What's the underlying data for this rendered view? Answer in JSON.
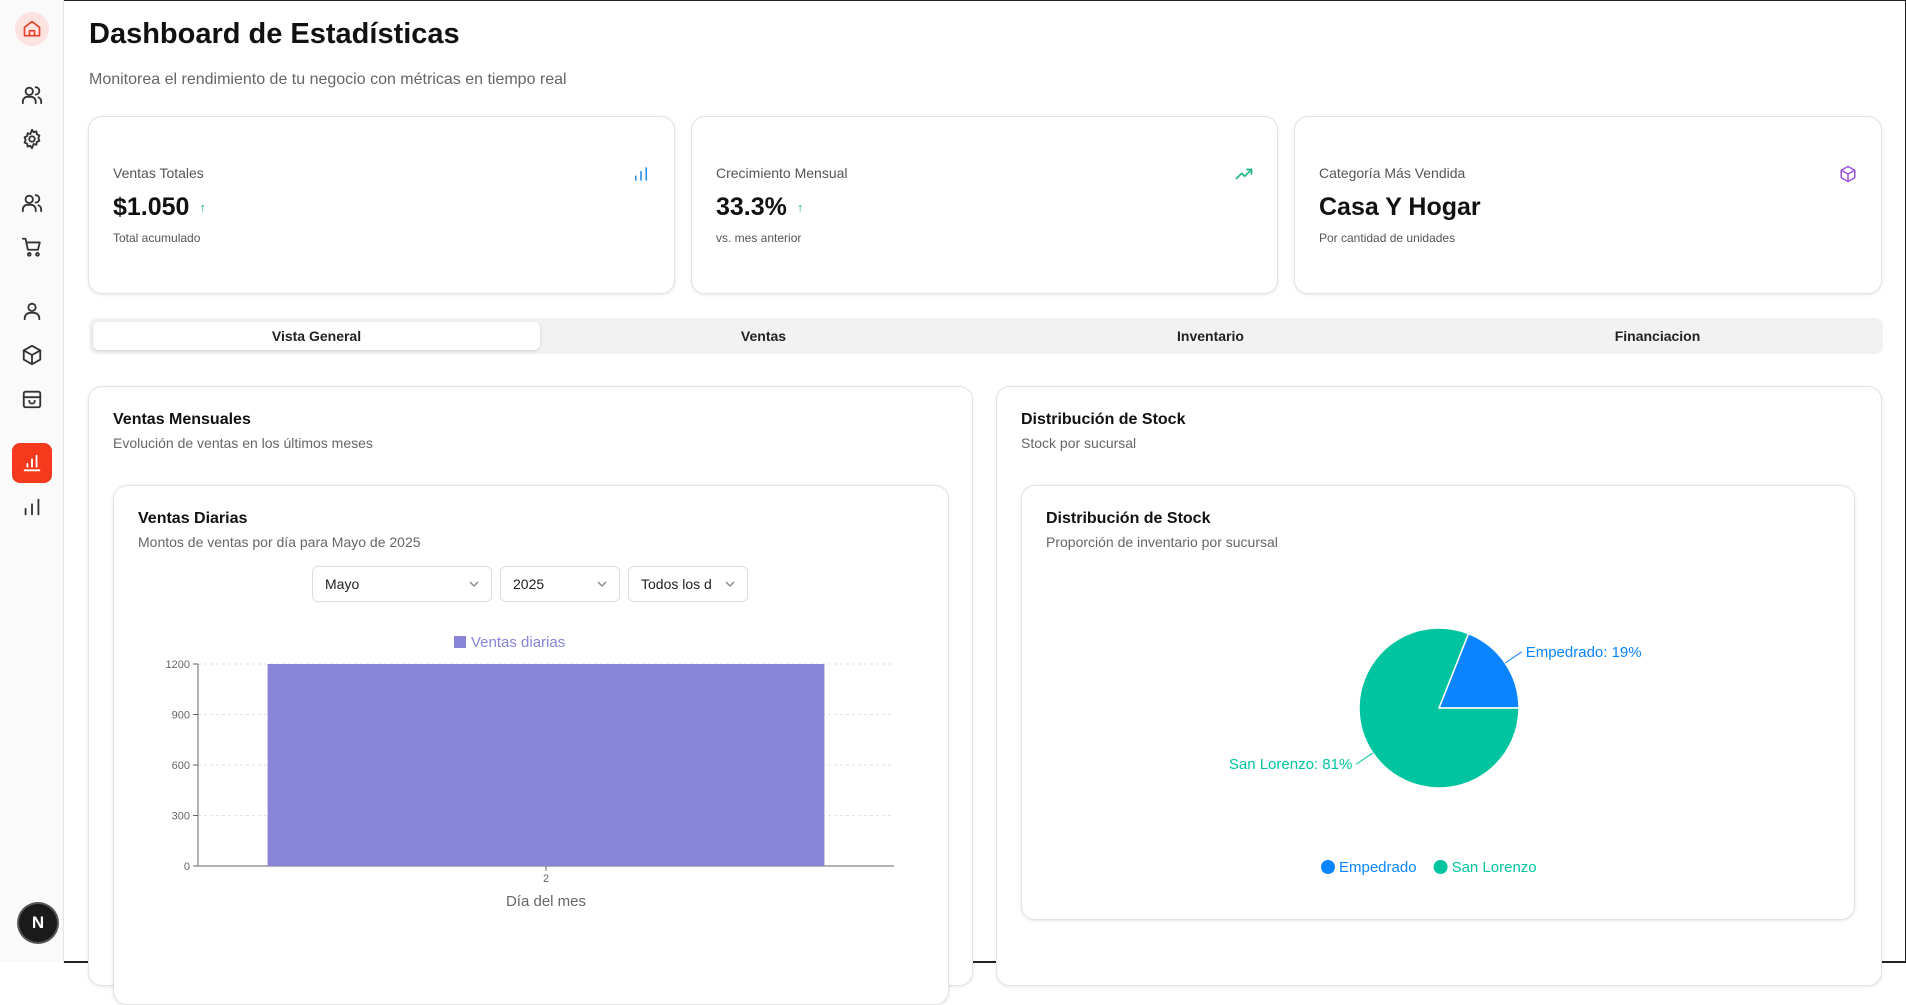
{
  "page": {
    "title": "Dashboard de Estadísticas",
    "subtitle": "Monitorea el rendimiento de tu negocio con métricas en tiempo real"
  },
  "sidebar": {
    "items": [
      {
        "icon": "home-icon"
      },
      {
        "icon": "users-icon"
      },
      {
        "icon": "settings-icon"
      },
      {
        "icon": "users-icon"
      },
      {
        "icon": "cart-icon"
      },
      {
        "icon": "user-icon"
      },
      {
        "icon": "box-icon"
      },
      {
        "icon": "store-icon"
      },
      {
        "icon": "bar-chart-icon",
        "active": true
      },
      {
        "icon": "bar-chart-icon"
      }
    ],
    "avatar_letter": "N"
  },
  "stats": [
    {
      "label": "Ventas Totales",
      "value": "$1.050",
      "note": "Total acumulado",
      "icon": "bar-chart-icon",
      "icon_color": "#2f8fe6",
      "trend": "up"
    },
    {
      "label": "Crecimiento Mensual",
      "value": "33.3%",
      "note": "vs. mes anterior",
      "icon": "trending-up-icon",
      "icon_color": "#1fb981",
      "trend": "up"
    },
    {
      "label": "Categoría Más Vendida",
      "value": "Casa Y Hogar",
      "note": "Por cantidad de unidades",
      "icon": "box-icon",
      "icon_color": "#9b51e0"
    }
  ],
  "trend_glyph": "↑",
  "tabs": [
    {
      "label": "Vista General",
      "active": true
    },
    {
      "label": "Ventas"
    },
    {
      "label": "Inventario"
    },
    {
      "label": "Financiacion"
    }
  ],
  "sales_section": {
    "title": "Ventas Mensuales",
    "subtitle": "Evolución de ventas en los últimos meses",
    "daily": {
      "title": "Ventas Diarias",
      "subtitle": "Montos de ventas por día para Mayo de 2025",
      "month_select": "Mayo",
      "year_select": "2025",
      "day_select": "Todos los d"
    }
  },
  "stock_section": {
    "title": "Distribución de Stock",
    "subtitle": "Stock por sucursal",
    "inner_title": "Distribución de Stock",
    "inner_subtitle": "Proporción de inventario por sucursal"
  },
  "chart_data": [
    {
      "type": "bar",
      "legend": [
        "Ventas diarias"
      ],
      "categories": [
        "2"
      ],
      "series": [
        {
          "name": "Ventas diarias",
          "values": [
            1200
          ],
          "color": "#8884d8"
        }
      ],
      "xlabel": "Día del mes",
      "ylabel": "",
      "yticks": [
        0,
        300,
        600,
        900,
        1200
      ],
      "ylim": [
        0,
        1200
      ],
      "grid": true,
      "legend_position": "top"
    },
    {
      "type": "pie",
      "slices": [
        {
          "name": "Empedrado",
          "value": 19,
          "label": "Empedrado: 19%",
          "color": "#0a84ff"
        },
        {
          "name": "San Lorenzo",
          "value": 81,
          "label": "San Lorenzo: 81%",
          "color": "#00c49f"
        }
      ],
      "legend_position": "bottom"
    }
  ]
}
